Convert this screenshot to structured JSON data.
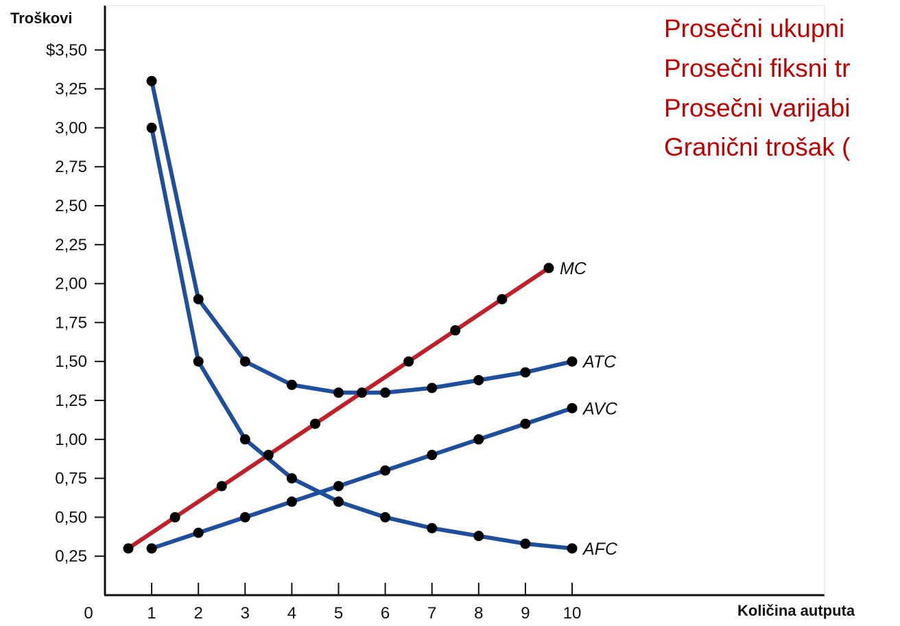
{
  "chart_data": {
    "type": "line",
    "ylabel": "Troškovi",
    "xlabel": "Količina autputa",
    "origin_label": "0",
    "xlim": [
      0,
      14
    ],
    "ylim": [
      0,
      3.75
    ],
    "x_ticks": [
      1,
      2,
      3,
      4,
      5,
      6,
      7,
      8,
      9,
      10
    ],
    "x_tick_labels": [
      "1",
      "2",
      "3",
      "4",
      "5",
      "6",
      "7",
      "8",
      "9",
      "10"
    ],
    "y_ticks": [
      0.25,
      0.5,
      0.75,
      1.0,
      1.25,
      1.5,
      1.75,
      2.0,
      2.25,
      2.5,
      2.75,
      3.0,
      3.25,
      3.5
    ],
    "y_tick_labels": [
      "0,25",
      "0,50",
      "0,75",
      "1,00",
      "1,25",
      "1,50",
      "1,75",
      "2,00",
      "2,25",
      "2,50",
      "2,75",
      "3,00",
      "3,25",
      "$3,50"
    ],
    "grid": false,
    "series": [
      {
        "name": "MC",
        "color": "#c0202a",
        "x": [
          0.5,
          1.5,
          2.5,
          3.5,
          4.5,
          5.5,
          6.5,
          7.5,
          8.5,
          9.5
        ],
        "y": [
          0.3,
          0.5,
          0.7,
          0.9,
          1.1,
          1.3,
          1.5,
          1.7,
          1.9,
          2.1
        ]
      },
      {
        "name": "ATC",
        "color": "#1f4e9c",
        "x": [
          1,
          2,
          3,
          4,
          5,
          6,
          7,
          8,
          9,
          10
        ],
        "y": [
          3.3,
          1.9,
          1.5,
          1.35,
          1.3,
          1.3,
          1.33,
          1.38,
          1.43,
          1.5
        ]
      },
      {
        "name": "AVC",
        "color": "#1f4e9c",
        "x": [
          1,
          2,
          3,
          4,
          5,
          6,
          7,
          8,
          9,
          10
        ],
        "y": [
          0.3,
          0.4,
          0.5,
          0.6,
          0.7,
          0.8,
          0.9,
          1.0,
          1.1,
          1.2
        ]
      },
      {
        "name": "AFC",
        "color": "#1f4e9c",
        "x": [
          1,
          2,
          3,
          4,
          5,
          6,
          7,
          8,
          9,
          10
        ],
        "y": [
          3.0,
          1.5,
          1.0,
          0.75,
          0.6,
          0.5,
          0.43,
          0.38,
          0.33,
          0.3
        ]
      }
    ]
  },
  "legend": {
    "color": "#c00000",
    "lines": [
      "Prosečni ukupni",
      "Prosečni fiksni tr",
      "Prosečni varijabi",
      "Granični trošak ("
    ]
  }
}
